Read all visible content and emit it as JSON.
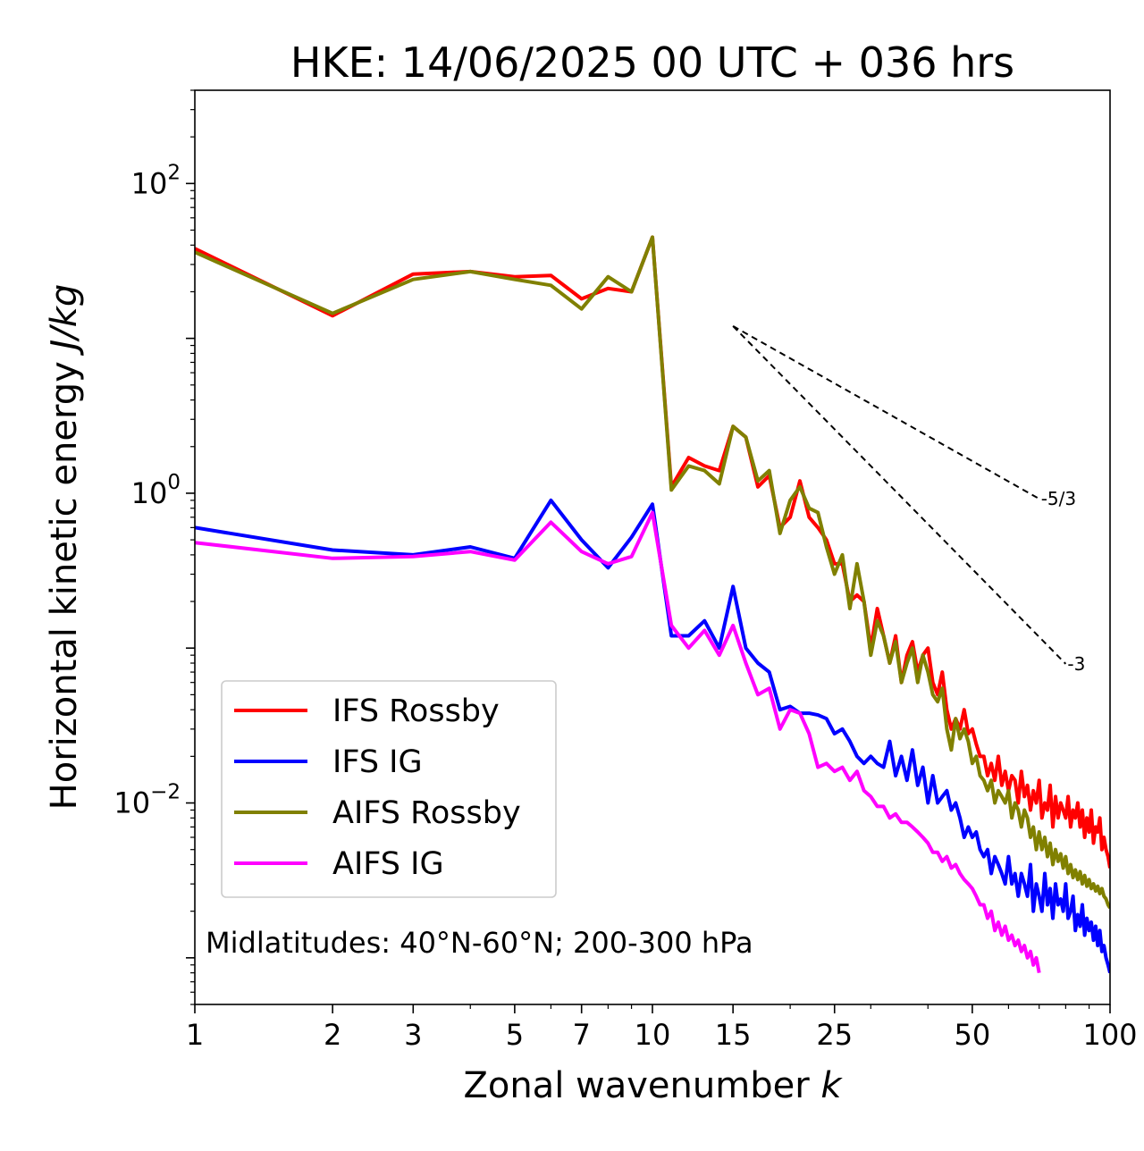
{
  "chart_data": {
    "type": "line",
    "title": "HKE: 14/06/2025 00 UTC + 036 hrs",
    "xlabel": "Zonal wavenumber k",
    "ylabel": "Horizontal kinetic energy J/kg",
    "x_scale": "log",
    "y_scale": "log",
    "xlim": [
      1,
      100
    ],
    "ylim": [
      0.0005,
      400
    ],
    "x_ticks": [
      1,
      2,
      3,
      5,
      7,
      10,
      15,
      25,
      50,
      100
    ],
    "x_tick_labels": [
      "1",
      "2",
      "3",
      "5",
      "7",
      "10",
      "15",
      "25",
      "50",
      "100"
    ],
    "y_ticks": [
      {
        "value": 0.01,
        "base": "10",
        "exp": "−2"
      },
      {
        "value": 1,
        "base": "10",
        "exp": "0"
      },
      {
        "value": 100,
        "base": "10",
        "exp": "2"
      }
    ],
    "legend": {
      "placement": "lower-left"
    },
    "annotation": "Midlatitudes: 40°N-60°N; 200-300 hPa",
    "reference_lines": [
      {
        "label": "-5/3",
        "slope": -1.6667,
        "x_start": 15,
        "x_end": 70,
        "y_start": 12
      },
      {
        "label": "-3",
        "slope": -3,
        "x_start": 15,
        "x_end": 80,
        "y_start": 12
      }
    ],
    "series": [
      {
        "name": "IFS Rossby",
        "color": "#ff0000",
        "x": [
          1,
          2,
          3,
          4,
          5,
          6,
          7,
          8,
          9,
          10,
          11,
          12,
          13,
          14,
          15,
          16,
          17,
          18,
          19,
          20,
          21,
          22,
          23,
          24,
          25,
          26,
          27,
          28,
          29,
          30,
          31,
          32,
          33,
          34,
          35,
          36,
          37,
          38,
          39,
          40,
          41,
          42,
          43,
          44,
          45,
          46,
          47,
          48,
          49,
          50,
          51,
          52,
          53,
          54,
          55,
          56,
          57,
          58,
          59,
          60,
          61,
          62,
          63,
          64,
          65,
          66,
          67,
          68,
          69,
          70,
          71,
          72,
          73,
          74,
          75,
          76,
          77,
          78,
          79,
          80,
          81,
          82,
          83,
          84,
          85,
          86,
          87,
          88,
          89,
          90,
          91,
          92,
          93,
          94,
          95,
          96,
          97,
          98,
          99,
          100
        ],
        "y": [
          38,
          14,
          26,
          27,
          25,
          25.5,
          18,
          21,
          20,
          45,
          1.1,
          1.7,
          1.5,
          1.4,
          2.7,
          2.3,
          1.1,
          1.3,
          0.6,
          0.7,
          1.2,
          0.7,
          0.6,
          0.5,
          0.35,
          0.35,
          0.2,
          0.22,
          0.2,
          0.1,
          0.18,
          0.12,
          0.08,
          0.12,
          0.06,
          0.09,
          0.11,
          0.07,
          0.09,
          0.1,
          0.06,
          0.05,
          0.07,
          0.04,
          0.03,
          0.035,
          0.03,
          0.04,
          0.028,
          0.03,
          0.024,
          0.02,
          0.02,
          0.015,
          0.018,
          0.014,
          0.02,
          0.013,
          0.016,
          0.012,
          0.015,
          0.014,
          0.01,
          0.016,
          0.011,
          0.013,
          0.009,
          0.012,
          0.01,
          0.014,
          0.008,
          0.01,
          0.009,
          0.013,
          0.007,
          0.011,
          0.008,
          0.01,
          0.009,
          0.008,
          0.011,
          0.007,
          0.009,
          0.008,
          0.01,
          0.007,
          0.009,
          0.006,
          0.008,
          0.0065,
          0.009,
          0.0055,
          0.007,
          0.0065,
          0.008,
          0.005,
          0.006,
          0.005,
          0.0045,
          0.0038
        ]
      },
      {
        "name": "IFS IG",
        "color": "#0000ff",
        "x": [
          1,
          2,
          3,
          4,
          5,
          6,
          7,
          8,
          9,
          10,
          11,
          12,
          13,
          14,
          15,
          16,
          17,
          18,
          19,
          20,
          21,
          22,
          23,
          24,
          25,
          26,
          27,
          28,
          29,
          30,
          31,
          32,
          33,
          34,
          35,
          36,
          37,
          38,
          39,
          40,
          41,
          42,
          43,
          44,
          45,
          46,
          47,
          48,
          49,
          50,
          51,
          52,
          53,
          54,
          55,
          56,
          57,
          58,
          59,
          60,
          61,
          62,
          63,
          64,
          65,
          66,
          67,
          68,
          69,
          70,
          71,
          72,
          73,
          74,
          75,
          76,
          77,
          78,
          79,
          80,
          81,
          82,
          83,
          84,
          85,
          86,
          87,
          88,
          89,
          90,
          91,
          92,
          93,
          94,
          95,
          96,
          97,
          98,
          99,
          100
        ],
        "y": [
          0.6,
          0.43,
          0.4,
          0.45,
          0.38,
          0.9,
          0.5,
          0.33,
          0.52,
          0.85,
          0.12,
          0.12,
          0.15,
          0.1,
          0.25,
          0.1,
          0.08,
          0.07,
          0.04,
          0.042,
          0.038,
          0.038,
          0.037,
          0.035,
          0.028,
          0.03,
          0.025,
          0.02,
          0.018,
          0.02,
          0.018,
          0.017,
          0.025,
          0.015,
          0.02,
          0.014,
          0.022,
          0.013,
          0.017,
          0.01,
          0.015,
          0.01,
          0.011,
          0.012,
          0.009,
          0.01,
          0.008,
          0.006,
          0.007,
          0.006,
          0.0065,
          0.005,
          0.0045,
          0.005,
          0.0035,
          0.0045,
          0.004,
          0.0035,
          0.003,
          0.0045,
          0.003,
          0.0035,
          0.0025,
          0.0035,
          0.003,
          0.0025,
          0.004,
          0.002,
          0.003,
          0.0025,
          0.002,
          0.0035,
          0.0022,
          0.0028,
          0.0018,
          0.003,
          0.0022,
          0.0024,
          0.002,
          0.003,
          0.0018,
          0.002,
          0.0025,
          0.0015,
          0.0019,
          0.0016,
          0.0022,
          0.0014,
          0.0018,
          0.0015,
          0.0017,
          0.0013,
          0.0016,
          0.0012,
          0.0015,
          0.0011,
          0.0012,
          0.001,
          0.0009,
          0.0008
        ]
      },
      {
        "name": "AIFS Rossby",
        "color": "#808000",
        "x": [
          1,
          2,
          3,
          4,
          5,
          6,
          7,
          8,
          9,
          10,
          11,
          12,
          13,
          14,
          15,
          16,
          17,
          18,
          19,
          20,
          21,
          22,
          23,
          24,
          25,
          26,
          27,
          28,
          29,
          30,
          31,
          32,
          33,
          34,
          35,
          36,
          37,
          38,
          39,
          40,
          41,
          42,
          43,
          44,
          45,
          46,
          47,
          48,
          49,
          50,
          51,
          52,
          53,
          54,
          55,
          56,
          57,
          58,
          59,
          60,
          61,
          62,
          63,
          64,
          65,
          66,
          67,
          68,
          69,
          70,
          71,
          72,
          73,
          74,
          75,
          76,
          77,
          78,
          79,
          80,
          81,
          82,
          83,
          84,
          85,
          86,
          87,
          88,
          89,
          90,
          91,
          92,
          93,
          94,
          95,
          96,
          97,
          98,
          99,
          100
        ],
        "y": [
          36,
          14.5,
          24,
          27,
          24,
          22,
          15.5,
          25,
          20,
          45,
          1.05,
          1.5,
          1.4,
          1.15,
          2.7,
          2.3,
          1.2,
          1.4,
          0.55,
          0.9,
          1.1,
          0.8,
          0.75,
          0.45,
          0.3,
          0.4,
          0.18,
          0.35,
          0.2,
          0.09,
          0.15,
          0.12,
          0.08,
          0.11,
          0.06,
          0.08,
          0.1,
          0.06,
          0.09,
          0.07,
          0.05,
          0.045,
          0.055,
          0.03,
          0.022,
          0.035,
          0.026,
          0.03,
          0.025,
          0.018,
          0.02,
          0.015,
          0.014,
          0.012,
          0.014,
          0.01,
          0.012,
          0.011,
          0.01,
          0.012,
          0.008,
          0.01,
          0.009,
          0.007,
          0.009,
          0.008,
          0.006,
          0.007,
          0.005,
          0.0065,
          0.005,
          0.006,
          0.0045,
          0.0055,
          0.004,
          0.005,
          0.0042,
          0.0047,
          0.0038,
          0.0045,
          0.0035,
          0.004,
          0.0033,
          0.0037,
          0.0032,
          0.0036,
          0.003,
          0.0034,
          0.0029,
          0.0032,
          0.0028,
          0.003,
          0.0027,
          0.0029,
          0.0026,
          0.0028,
          0.0025,
          0.0024,
          0.0022,
          0.0021
        ]
      },
      {
        "name": "AIFS IG",
        "color": "#ff00ff",
        "x": [
          1,
          2,
          3,
          4,
          5,
          6,
          7,
          8,
          9,
          10,
          11,
          12,
          13,
          14,
          15,
          16,
          17,
          18,
          19,
          20,
          21,
          22,
          23,
          24,
          25,
          26,
          27,
          28,
          29,
          30,
          31,
          32,
          33,
          34,
          35,
          36,
          37,
          38,
          39,
          40,
          41,
          42,
          43,
          44,
          45,
          46,
          47,
          48,
          49,
          50,
          51,
          52,
          53,
          54,
          55,
          56,
          57,
          58,
          59,
          60,
          61,
          62,
          63,
          64,
          65,
          66,
          67,
          68,
          69,
          70
        ],
        "y": [
          0.48,
          0.38,
          0.39,
          0.42,
          0.37,
          0.65,
          0.42,
          0.35,
          0.39,
          0.75,
          0.14,
          0.1,
          0.13,
          0.09,
          0.14,
          0.08,
          0.05,
          0.055,
          0.03,
          0.04,
          0.038,
          0.028,
          0.017,
          0.018,
          0.016,
          0.017,
          0.014,
          0.016,
          0.012,
          0.011,
          0.0095,
          0.0095,
          0.008,
          0.0085,
          0.0075,
          0.0075,
          0.007,
          0.0065,
          0.006,
          0.0055,
          0.0048,
          0.0048,
          0.0042,
          0.0045,
          0.0038,
          0.004,
          0.0035,
          0.0032,
          0.003,
          0.0028,
          0.0025,
          0.0022,
          0.0022,
          0.0018,
          0.002,
          0.0015,
          0.0017,
          0.0014,
          0.0016,
          0.0013,
          0.0014,
          0.0012,
          0.0013,
          0.0011,
          0.0012,
          0.001,
          0.0011,
          0.0009,
          0.001,
          0.0008
        ]
      }
    ]
  }
}
